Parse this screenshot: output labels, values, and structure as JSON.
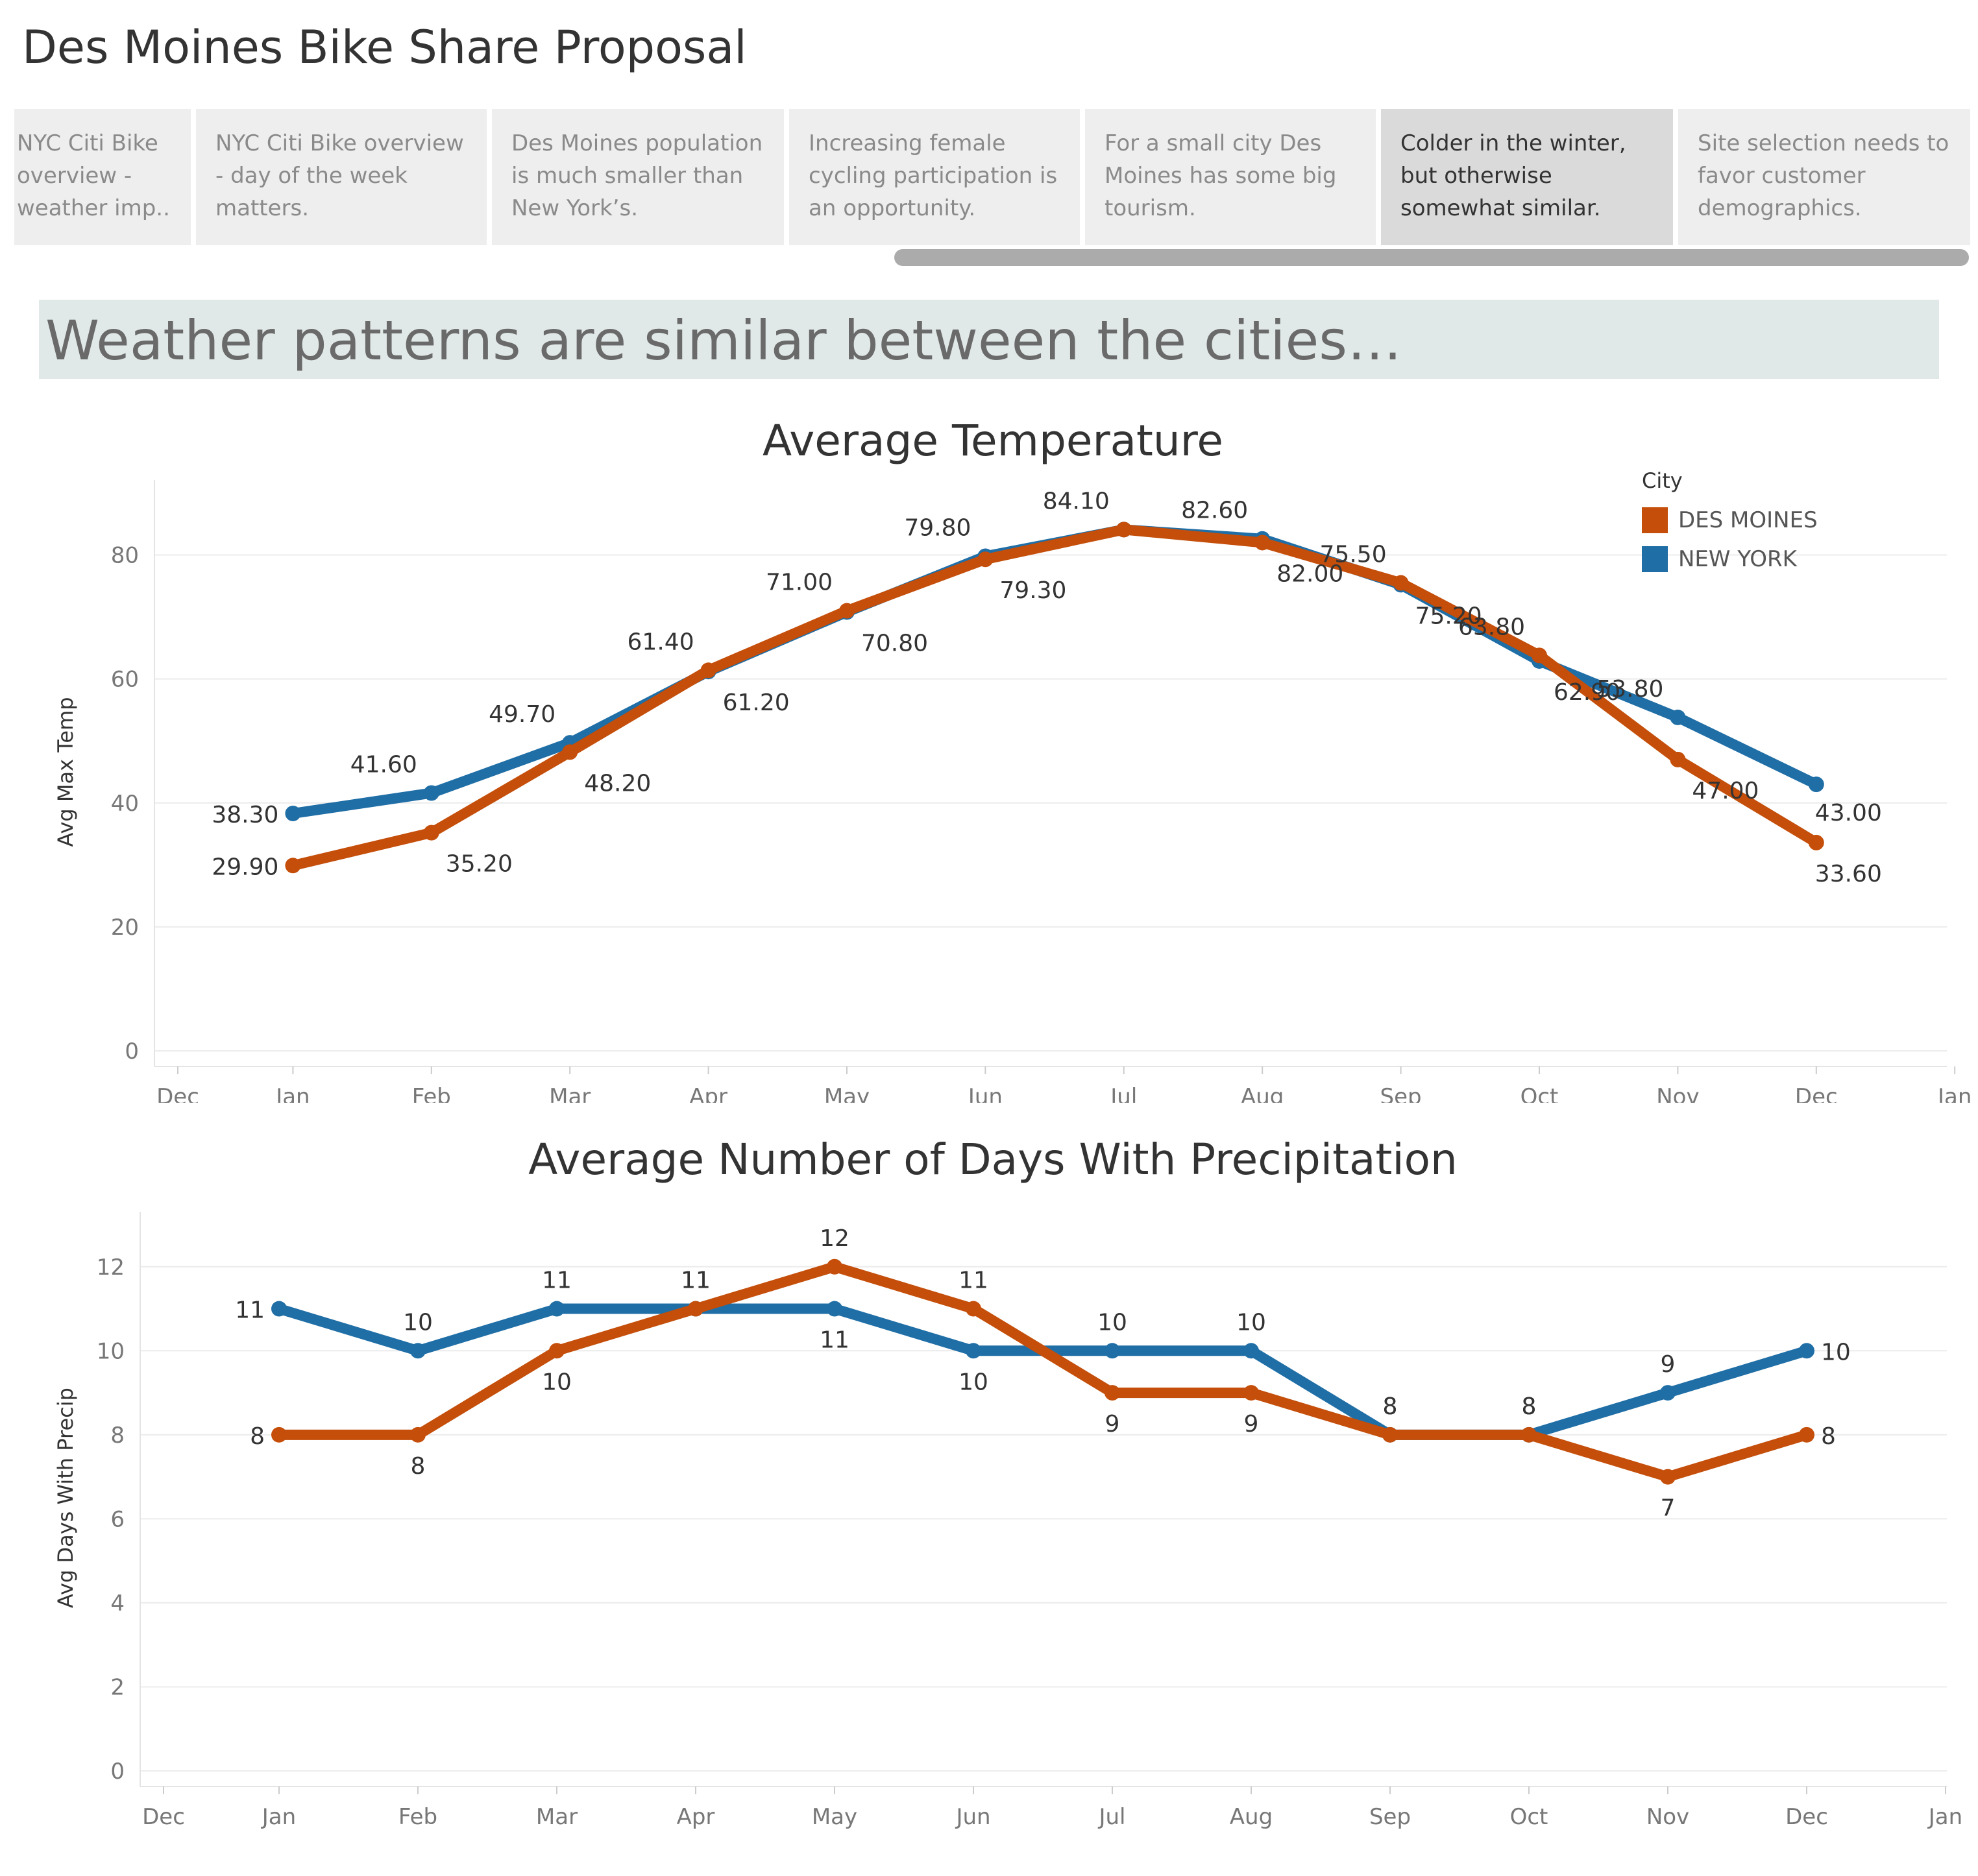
{
  "page_title": "Des Moines Bike Share Proposal",
  "story_points": [
    "NYC Citi Bike overview - weather imp..",
    "NYC Citi Bike overview - day of the week matters.",
    "Des Moines population is much smaller than New York’s.",
    "Increasing female cycling participation is an opportunity.",
    "For a small city Des Moines has some big tourism.",
    "Colder in the winter, but otherwise somewhat similar.",
    "Site selection needs to favor customer demographics."
  ],
  "active_story_point": 5,
  "banner": "Weather patterns are similar between the cities…",
  "legend": {
    "title": "City",
    "items": [
      {
        "label": "DES MOINES",
        "color": "#c44e0a"
      },
      {
        "label": "NEW YORK",
        "color": "#1f6ea6"
      }
    ]
  },
  "chart_data": [
    {
      "type": "line",
      "title": "Average Temperature",
      "ylabel": "Avg Max Temp",
      "xlabel": "",
      "x_ticks": [
        "Dec",
        "Jan",
        "Feb",
        "Mar",
        "Apr",
        "May",
        "Jun",
        "Jul",
        "Aug",
        "Sep",
        "Oct",
        "Nov",
        "Dec",
        "Jan"
      ],
      "categories": [
        "Jan",
        "Feb",
        "Mar",
        "Apr",
        "May",
        "Jun",
        "Jul",
        "Aug",
        "Sep",
        "Oct",
        "Nov",
        "Dec"
      ],
      "y_ticks": [
        0,
        20,
        40,
        60,
        80
      ],
      "ylim": [
        0,
        90
      ],
      "grid": true,
      "series": [
        {
          "name": "NEW YORK",
          "color": "#1f6ea6",
          "values": [
            38.3,
            41.6,
            49.7,
            61.2,
            70.8,
            79.8,
            84.1,
            82.6,
            75.2,
            62.9,
            53.8,
            43.0
          ],
          "labels": [
            "38.30",
            "41.60",
            "49.70",
            "61.20",
            "70.80",
            "79.80",
            "84.10",
            "82.60",
            "75.20",
            "62.90",
            "53.80",
            "43.00"
          ]
        },
        {
          "name": "DES MOINES",
          "color": "#c44e0a",
          "values": [
            29.9,
            35.2,
            48.2,
            61.4,
            71.0,
            79.3,
            84.1,
            82.0,
            75.5,
            63.8,
            47.0,
            33.6
          ],
          "labels": [
            "29.90",
            "35.20",
            "48.20",
            "61.40",
            "71.00",
            "79.30",
            "",
            "82.00",
            "75.50",
            "63.80",
            "47.00",
            "33.60"
          ]
        }
      ]
    },
    {
      "type": "line",
      "title": "Average Number of Days With Precipitation",
      "ylabel": "Avg Days With Precip",
      "xlabel": "",
      "x_ticks": [
        "Dec",
        "Jan",
        "Feb",
        "Mar",
        "Apr",
        "May",
        "Jun",
        "Jul",
        "Aug",
        "Sep",
        "Oct",
        "Nov",
        "Dec",
        "Jan"
      ],
      "categories": [
        "Jan",
        "Feb",
        "Mar",
        "Apr",
        "May",
        "Jun",
        "Jul",
        "Aug",
        "Sep",
        "Oct",
        "Nov",
        "Dec"
      ],
      "y_ticks": [
        0,
        2,
        4,
        6,
        8,
        10,
        12
      ],
      "ylim": [
        0,
        13
      ],
      "grid": true,
      "series": [
        {
          "name": "NEW YORK",
          "color": "#1f6ea6",
          "values": [
            11,
            10,
            11,
            11,
            11,
            10,
            10,
            10,
            8,
            8,
            9,
            10
          ],
          "labels": [
            "11",
            "10",
            "11",
            "11",
            "11",
            "10",
            "10",
            "10",
            "8",
            "8",
            "9",
            "10"
          ]
        },
        {
          "name": "DES MOINES",
          "color": "#c44e0a",
          "values": [
            8,
            8,
            10,
            11,
            12,
            11,
            9,
            9,
            8,
            8,
            7,
            8
          ],
          "labels": [
            "8",
            "8",
            "10",
            "11",
            "12",
            "11",
            "9",
            "9",
            "8",
            "8",
            "7",
            "8"
          ]
        }
      ]
    }
  ]
}
